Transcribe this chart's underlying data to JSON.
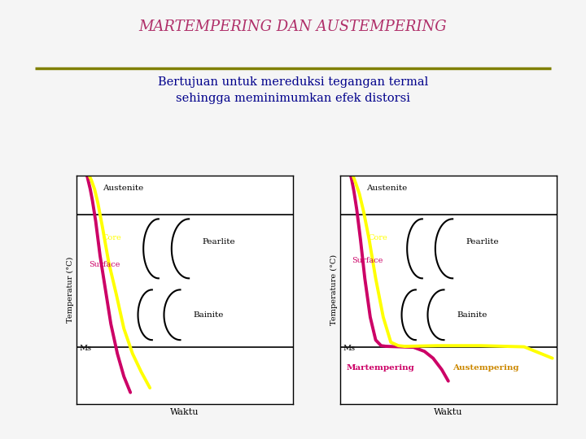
{
  "title": "MARTEMPERING DAN AUSTEMPERING",
  "subtitle_line1": "Bertujuan untuk mereduksi tegangan termal",
  "subtitle_line2": "sehingga meminimumkan efek distorsi",
  "title_color": "#b0306a",
  "subtitle_color": "#00008B",
  "bg_color": "#f5f5f5",
  "left_panel": {
    "ylabel": "Temperatur (°C)",
    "xlabel": "Waktu",
    "austenite_label": "Austenite",
    "core_label": "Core",
    "surface_label": "Surface",
    "pearlite_label": "Pearlite",
    "bainite_label": "Bainite",
    "ms_label": "Ms"
  },
  "right_panel": {
    "ylabel": "Temperature (°C)",
    "xlabel": "Waktu",
    "austenite_label": "Austenite",
    "core_label": "Core",
    "surface_label": "Surface",
    "pearlite_label": "Pearlite",
    "bainite_label": "Bainite",
    "ms_label": "Ms",
    "martempering_label": "Martempering",
    "austempering_label": "Austempering"
  },
  "panel_bg": "#ffffff",
  "core_color": "#ffff00",
  "surface_color": "#cc0066",
  "martemper_color": "#cc0066",
  "austemper_color": "#ffff00",
  "olive_line_color": "#808000"
}
